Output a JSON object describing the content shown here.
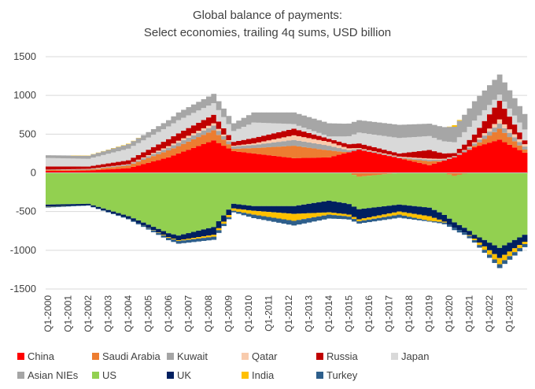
{
  "chart_data": {
    "type": "area",
    "title": [
      "Global balance of payments:",
      "Select economies, trailing 4q sums, USD billion"
    ],
    "xlabel": "",
    "ylabel": "",
    "ylim": [
      -1500,
      1500
    ],
    "yticks": [
      -1500,
      -1000,
      -500,
      0,
      500,
      1000,
      1500
    ],
    "x_start": "2000Q1",
    "x_end": "2023Q4",
    "x_tick_labels": [
      "Q1-2000",
      "Q1-2001",
      "Q1-2002",
      "Q1-2003",
      "Q1-2004",
      "Q1-2005",
      "Q1-2006",
      "Q1-2007",
      "Q1-2008",
      "Q1-2009",
      "Q1-2010",
      "Q1-2011",
      "Q1-2012",
      "Q1-2013",
      "Q1-2014",
      "Q1-2015",
      "Q1-2016",
      "Q1-2017",
      "Q1-2018",
      "Q1-2019",
      "Q1-2020",
      "Q1-2021",
      "Q1-2022",
      "Q1-2023"
    ],
    "grid": "horizontal",
    "legend_position": "bottom",
    "anchors": [
      {
        "q": "2000Q1",
        "China": 25,
        "Saudi Arabia": 10,
        "Kuwait": 5,
        "Qatar": 2,
        "Russia": 40,
        "Japan": 110,
        "Asian NIEs": 35,
        "US": -410,
        "UK": -25,
        "India": -3,
        "Turkey": -10
      },
      {
        "q": "2002Q1",
        "China": 30,
        "Saudi Arabia": 10,
        "Kuwait": 8,
        "Qatar": 3,
        "Russia": 30,
        "Japan": 100,
        "Asian NIEs": 40,
        "US": -400,
        "UK": -20,
        "India": 2,
        "Turkey": -3
      },
      {
        "q": "2004Q1",
        "China": 60,
        "Saudi Arabia": 35,
        "Kuwait": 12,
        "Qatar": 5,
        "Russia": 50,
        "Japan": 150,
        "Asian NIEs": 60,
        "US": -560,
        "UK": -30,
        "India": 5,
        "Turkey": -10
      },
      {
        "q": "2006Q1",
        "China": 200,
        "Saudi Arabia": 90,
        "Kuwait": 35,
        "Qatar": 20,
        "Russia": 90,
        "Japan": 165,
        "Asian NIEs": 80,
        "US": -780,
        "UK": -50,
        "India": -10,
        "Turkey": -30
      },
      {
        "q": "2006Q3",
        "China": 250,
        "Saudi Arabia": 95,
        "Kuwait": 45,
        "Qatar": 25,
        "Russia": 95,
        "Japan": 170,
        "Asian NIEs": 100,
        "US": -810,
        "UK": -60,
        "India": -10,
        "Turkey": -35
      },
      {
        "q": "2008Q2",
        "China": 420,
        "Saudi Arabia": 130,
        "Kuwait": 60,
        "Qatar": 30,
        "Russia": 110,
        "Japan": 150,
        "Asian NIEs": 120,
        "US": -700,
        "UK": -100,
        "India": -25,
        "Turkey": -40
      },
      {
        "q": "2009Q2",
        "China": 280,
        "Saudi Arabia": 30,
        "Kuwait": 30,
        "Qatar": 10,
        "Russia": 50,
        "Japan": 140,
        "Asian NIEs": 100,
        "US": -400,
        "UK": -60,
        "India": -30,
        "Turkey": -20
      },
      {
        "q": "2010Q2",
        "China": 250,
        "Saudi Arabia": 70,
        "Kuwait": 40,
        "Qatar": 20,
        "Russia": 70,
        "Japan": 200,
        "Asian NIEs": 130,
        "US": -430,
        "UK": -60,
        "India": -50,
        "Turkey": -45
      },
      {
        "q": "2012Q2",
        "China": 190,
        "Saudi Arabia": 160,
        "Kuwait": 75,
        "Qatar": 60,
        "Russia": 85,
        "Japan": 60,
        "Asian NIEs": 150,
        "US": -430,
        "UK": -100,
        "India": -90,
        "Turkey": -60
      },
      {
        "q": "2014Q1",
        "China": 200,
        "Saudi Arabia": 90,
        "Kuwait": 60,
        "Qatar": 50,
        "Russia": 40,
        "Japan": 30,
        "Asian NIEs": 170,
        "US": -360,
        "UK": -150,
        "India": -30,
        "Turkey": -50
      },
      {
        "q": "2015Q3",
        "China": 300,
        "Saudi Arabia": -50,
        "Kuwait": 10,
        "Qatar": 10,
        "Russia": 60,
        "Japan": 140,
        "Asian NIEs": 160,
        "US": -420,
        "UK": -130,
        "India": -25,
        "Turkey": -30
      },
      {
        "q": "2017Q3",
        "China": 190,
        "Saudi Arabia": 0,
        "Kuwait": 10,
        "Qatar": 10,
        "Russia": 40,
        "Japan": 200,
        "Asian NIEs": 170,
        "US": -410,
        "UK": -90,
        "India": -40,
        "Turkey": -40
      },
      {
        "q": "2019Q1",
        "China": 100,
        "Saudi Arabia": 50,
        "Kuwait": 20,
        "Qatar": 15,
        "Russia": 110,
        "Japan": 180,
        "Asian NIEs": 160,
        "US": -450,
        "UK": -110,
        "India": -60,
        "Turkey": -10
      },
      {
        "q": "2020Q2",
        "China": 200,
        "Saudi Arabia": -40,
        "Kuwait": 10,
        "Qatar": 5,
        "Russia": 40,
        "Japan": 140,
        "Asian NIEs": 200,
        "US": -600,
        "UK": -70,
        "India": 20,
        "Turkey": -30
      },
      {
        "q": "2021Q2",
        "China": 330,
        "Saudi Arabia": 20,
        "Kuwait": 30,
        "Qatar": 15,
        "Russia": 100,
        "Japan": 180,
        "Asian NIEs": 250,
        "US": -800,
        "UK": -50,
        "India": -20,
        "Turkey": -30
      },
      {
        "q": "2022Q3",
        "China": 430,
        "Saudi Arabia": 140,
        "Kuwait": 65,
        "Qatar": 55,
        "Russia": 240,
        "Japan": 80,
        "Asian NIEs": 260,
        "US": -970,
        "UK": -130,
        "India": -80,
        "Turkey": -50
      },
      {
        "q": "2023Q4",
        "China": 260,
        "Saudi Arabia": 40,
        "Kuwait": 40,
        "Qatar": 30,
        "Russia": 50,
        "Japan": 140,
        "Asian NIEs": 200,
        "US": -800,
        "UK": -90,
        "India": -30,
        "Turkey": -40
      }
    ]
  },
  "legend": [
    {
      "name": "China",
      "color": "#ff0000"
    },
    {
      "name": "Saudi Arabia",
      "color": "#ed7d31"
    },
    {
      "name": "Kuwait",
      "color": "#a5a5a5"
    },
    {
      "name": "Qatar",
      "color": "#f8cbad"
    },
    {
      "name": "Russia",
      "color": "#c00000"
    },
    {
      "name": "Japan",
      "color": "#d9d9d9"
    },
    {
      "name": "Asian NIEs",
      "color": "#a6a6a6"
    },
    {
      "name": "US",
      "color": "#92d050"
    },
    {
      "name": "UK",
      "color": "#002060"
    },
    {
      "name": "India",
      "color": "#ffc000"
    },
    {
      "name": "Turkey",
      "color": "#2e5f8c"
    }
  ]
}
